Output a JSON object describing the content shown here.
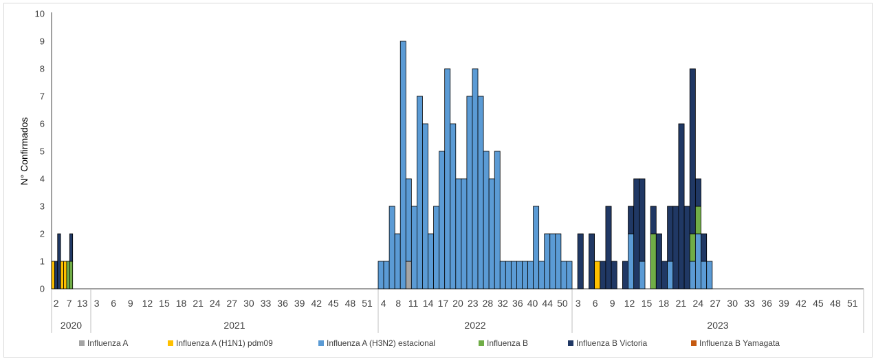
{
  "chart_data": {
    "type": "bar",
    "stacked": true,
    "title": "",
    "xlabel": "",
    "ylabel": "N° Confirmados",
    "ylim": [
      0,
      10
    ],
    "yticks": [
      0,
      1,
      2,
      3,
      4,
      5,
      6,
      7,
      8,
      9,
      10
    ],
    "grid": false,
    "legend_position": "bottom",
    "years": [
      {
        "label": "2020",
        "tick_labels": [
          "2",
          "7",
          "13"
        ],
        "weeks": 13
      },
      {
        "label": "2021",
        "tick_labels": [
          "3",
          "6",
          "9",
          "12",
          "15",
          "18",
          "21",
          "24",
          "27",
          "30",
          "33",
          "36",
          "39",
          "42",
          "45",
          "48",
          "51"
        ],
        "weeks": 52
      },
      {
        "label": "2022",
        "tick_labels": [
          "4",
          "8",
          "11",
          "14",
          "17",
          "20",
          "23",
          "28",
          "32",
          "36",
          "40",
          "44",
          "50"
        ],
        "weeks": 35
      },
      {
        "label": "2023",
        "tick_labels": [
          "3",
          "6",
          "9",
          "12",
          "15",
          "18",
          "21",
          "24",
          "27",
          "30",
          "33",
          "36",
          "39",
          "42",
          "45",
          "48",
          "51"
        ],
        "weeks": 52
      }
    ],
    "series": [
      {
        "name": "Influenza A",
        "color": "#a5a5a5"
      },
      {
        "name": "Influenza A (H1N1) pdm09",
        "color": "#ffc000"
      },
      {
        "name": "Influenza A (H3N2) estacional",
        "color": "#5b9bd5"
      },
      {
        "name": "Influenza B",
        "color": "#70ad47"
      },
      {
        "name": "Influenza B Victoria",
        "color": "#203864"
      },
      {
        "name": "Influenza B Yamagata",
        "color": "#c55a11"
      }
    ],
    "bars": [
      {
        "year": "2020",
        "index": 0,
        "stack": [
          0,
          1,
          0,
          0,
          0,
          0
        ]
      },
      {
        "year": "2020",
        "index": 1,
        "stack": [
          0,
          0,
          0,
          0,
          1,
          0
        ]
      },
      {
        "year": "2020",
        "index": 2,
        "stack": [
          0,
          0,
          0,
          0,
          2,
          0
        ]
      },
      {
        "year": "2020",
        "index": 3,
        "stack": [
          0,
          1,
          0,
          0,
          0,
          0
        ]
      },
      {
        "year": "2020",
        "index": 4,
        "stack": [
          0,
          1,
          0,
          0,
          0,
          0
        ]
      },
      {
        "year": "2020",
        "index": 5,
        "stack": [
          0,
          0,
          0,
          1,
          0,
          0
        ]
      },
      {
        "year": "2020",
        "index": 6,
        "stack": [
          0,
          0,
          0,
          1,
          1,
          0
        ]
      },
      {
        "year": "2022",
        "index": 0,
        "stack": [
          0,
          0,
          1,
          0,
          0,
          0
        ]
      },
      {
        "year": "2022",
        "index": 1,
        "stack": [
          0,
          0,
          1,
          0,
          0,
          0
        ]
      },
      {
        "year": "2022",
        "index": 2,
        "stack": [
          0,
          0,
          3,
          0,
          0,
          0
        ]
      },
      {
        "year": "2022",
        "index": 3,
        "stack": [
          0,
          0,
          2,
          0,
          0,
          0
        ]
      },
      {
        "year": "2022",
        "index": 4,
        "stack": [
          0,
          0,
          9,
          0,
          0,
          0
        ]
      },
      {
        "year": "2022",
        "index": 5,
        "stack": [
          1,
          0,
          3,
          0,
          0,
          0
        ]
      },
      {
        "year": "2022",
        "index": 6,
        "stack": [
          0,
          0,
          3,
          0,
          0,
          0
        ]
      },
      {
        "year": "2022",
        "index": 7,
        "stack": [
          0,
          0,
          7,
          0,
          0,
          0
        ]
      },
      {
        "year": "2022",
        "index": 8,
        "stack": [
          0,
          0,
          6,
          0,
          0,
          0
        ]
      },
      {
        "year": "2022",
        "index": 9,
        "stack": [
          0,
          0,
          2,
          0,
          0,
          0
        ]
      },
      {
        "year": "2022",
        "index": 10,
        "stack": [
          0,
          0,
          3,
          0,
          0,
          0
        ]
      },
      {
        "year": "2022",
        "index": 11,
        "stack": [
          0,
          0,
          5,
          0,
          0,
          0
        ]
      },
      {
        "year": "2022",
        "index": 12,
        "stack": [
          0,
          0,
          8,
          0,
          0,
          0
        ]
      },
      {
        "year": "2022",
        "index": 13,
        "stack": [
          0,
          0,
          6,
          0,
          0,
          0
        ]
      },
      {
        "year": "2022",
        "index": 14,
        "stack": [
          0,
          0,
          4,
          0,
          0,
          0
        ]
      },
      {
        "year": "2022",
        "index": 15,
        "stack": [
          0,
          0,
          4,
          0,
          0,
          0
        ]
      },
      {
        "year": "2022",
        "index": 16,
        "stack": [
          0,
          0,
          7,
          0,
          0,
          0
        ]
      },
      {
        "year": "2022",
        "index": 17,
        "stack": [
          0,
          0,
          8,
          0,
          0,
          0
        ]
      },
      {
        "year": "2022",
        "index": 18,
        "stack": [
          0,
          0,
          7,
          0,
          0,
          0
        ]
      },
      {
        "year": "2022",
        "index": 19,
        "stack": [
          0,
          0,
          5,
          0,
          0,
          0
        ]
      },
      {
        "year": "2022",
        "index": 20,
        "stack": [
          0,
          0,
          4,
          0,
          0,
          0
        ]
      },
      {
        "year": "2022",
        "index": 21,
        "stack": [
          0,
          0,
          5,
          0,
          0,
          0
        ]
      },
      {
        "year": "2022",
        "index": 22,
        "stack": [
          0,
          0,
          1,
          0,
          0,
          0
        ]
      },
      {
        "year": "2022",
        "index": 23,
        "stack": [
          0,
          0,
          1,
          0,
          0,
          0
        ]
      },
      {
        "year": "2022",
        "index": 24,
        "stack": [
          0,
          0,
          1,
          0,
          0,
          0
        ]
      },
      {
        "year": "2022",
        "index": 25,
        "stack": [
          0,
          0,
          1,
          0,
          0,
          0
        ]
      },
      {
        "year": "2022",
        "index": 26,
        "stack": [
          0,
          0,
          1,
          0,
          0,
          0
        ]
      },
      {
        "year": "2022",
        "index": 27,
        "stack": [
          0,
          0,
          1,
          0,
          0,
          0
        ]
      },
      {
        "year": "2022",
        "index": 28,
        "stack": [
          0,
          0,
          3,
          0,
          0,
          0
        ]
      },
      {
        "year": "2022",
        "index": 29,
        "stack": [
          0,
          0,
          1,
          0,
          0,
          0
        ]
      },
      {
        "year": "2022",
        "index": 30,
        "stack": [
          0,
          0,
          2,
          0,
          0,
          0
        ]
      },
      {
        "year": "2022",
        "index": 31,
        "stack": [
          0,
          0,
          2,
          0,
          0,
          0
        ]
      },
      {
        "year": "2022",
        "index": 32,
        "stack": [
          0,
          0,
          2,
          0,
          0,
          0
        ]
      },
      {
        "year": "2022",
        "index": 33,
        "stack": [
          0,
          0,
          1,
          0,
          0,
          0
        ]
      },
      {
        "year": "2022",
        "index": 34,
        "stack": [
          0,
          0,
          1,
          0,
          0,
          0
        ]
      },
      {
        "year": "2023",
        "index": 1,
        "stack": [
          0,
          0,
          0,
          0,
          2,
          0
        ]
      },
      {
        "year": "2023",
        "index": 3,
        "stack": [
          0,
          0,
          0,
          0,
          2,
          0
        ]
      },
      {
        "year": "2023",
        "index": 4,
        "stack": [
          0,
          1,
          0,
          0,
          0,
          0
        ]
      },
      {
        "year": "2023",
        "index": 5,
        "stack": [
          0,
          0,
          0,
          0,
          1,
          0
        ]
      },
      {
        "year": "2023",
        "index": 6,
        "stack": [
          0,
          0,
          0,
          0,
          3,
          0
        ]
      },
      {
        "year": "2023",
        "index": 7,
        "stack": [
          0,
          0,
          0,
          0,
          1,
          0
        ]
      },
      {
        "year": "2023",
        "index": 9,
        "stack": [
          0,
          0,
          0,
          0,
          1,
          0
        ]
      },
      {
        "year": "2023",
        "index": 10,
        "stack": [
          0,
          0,
          2,
          0,
          1,
          0
        ]
      },
      {
        "year": "2023",
        "index": 11,
        "stack": [
          0,
          0,
          0,
          0,
          4,
          0
        ]
      },
      {
        "year": "2023",
        "index": 12,
        "stack": [
          0,
          0,
          1,
          0,
          3,
          0
        ]
      },
      {
        "year": "2023",
        "index": 14,
        "stack": [
          0,
          0,
          0,
          2,
          1,
          0
        ]
      },
      {
        "year": "2023",
        "index": 15,
        "stack": [
          0,
          0,
          0,
          0,
          2,
          0
        ]
      },
      {
        "year": "2023",
        "index": 16,
        "stack": [
          0,
          0,
          0,
          0,
          1,
          0
        ]
      },
      {
        "year": "2023",
        "index": 17,
        "stack": [
          0,
          0,
          1,
          0,
          2,
          0
        ]
      },
      {
        "year": "2023",
        "index": 18,
        "stack": [
          0,
          0,
          0,
          0,
          3,
          0
        ]
      },
      {
        "year": "2023",
        "index": 19,
        "stack": [
          0,
          0,
          0,
          0,
          6,
          0
        ]
      },
      {
        "year": "2023",
        "index": 20,
        "stack": [
          0,
          0,
          0,
          0,
          3,
          0
        ]
      },
      {
        "year": "2023",
        "index": 21,
        "stack": [
          0,
          0,
          1,
          1,
          6,
          0
        ]
      },
      {
        "year": "2023",
        "index": 22,
        "stack": [
          0,
          0,
          2,
          1,
          1,
          0
        ]
      },
      {
        "year": "2023",
        "index": 23,
        "stack": [
          0,
          0,
          1,
          0,
          1,
          0
        ]
      },
      {
        "year": "2023",
        "index": 24,
        "stack": [
          0,
          0,
          1,
          0,
          0,
          0
        ]
      }
    ]
  }
}
